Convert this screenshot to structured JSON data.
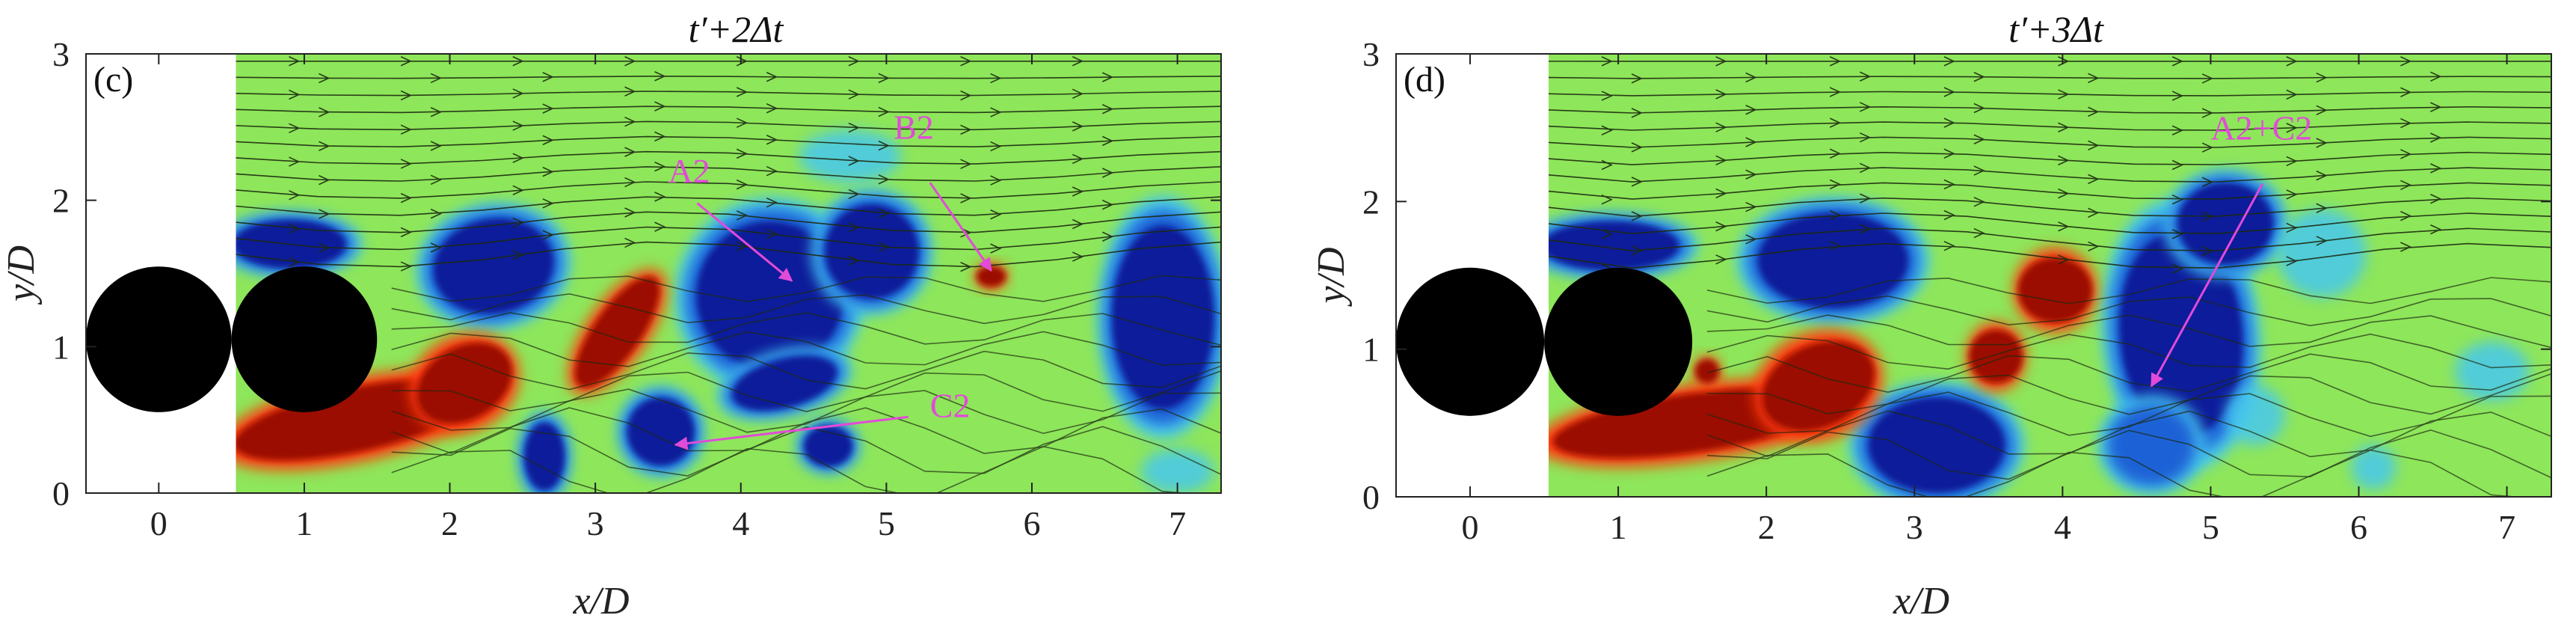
{
  "colors": {
    "background_field": "#8ee65a",
    "positive_vortex": "#9b0b00",
    "positive_edge": "#ff3b0a",
    "negative_vortex": "#0a1f9a",
    "negative_mid": "#1e62d6",
    "negative_edge": "#47c8ee",
    "cylinder": "#000000",
    "streamline": "#1c2a10",
    "annotation": "#e24ad8"
  },
  "chart_data": [
    {
      "type": "heatmap",
      "panel_label": "(c)",
      "title": "t′+2Δt",
      "xlabel": "x/D",
      "ylabel": "y/D",
      "xlim": [
        -0.5,
        7.3
      ],
      "ylim": [
        0,
        3
      ],
      "x_ticks": [
        0,
        1,
        2,
        3,
        4,
        5,
        6,
        7
      ],
      "y_ticks": [
        0,
        1,
        2,
        3
      ],
      "measurement_start_x": 0.53,
      "cylinders": [
        {
          "x": 0,
          "y": 1.05,
          "d": 1
        },
        {
          "x": 1,
          "y": 1.05,
          "d": 1
        }
      ],
      "vortices": [
        {
          "sign": "negative",
          "x": 0.9,
          "y": 1.7,
          "rx": 0.42,
          "ry": 0.18,
          "rot": 0
        },
        {
          "sign": "negative",
          "x": 2.3,
          "y": 1.55,
          "rx": 0.45,
          "ry": 0.35,
          "rot": -10
        },
        {
          "sign": "negative",
          "x": 4.2,
          "y": 1.35,
          "rx": 0.55,
          "ry": 0.55,
          "rot": 20
        },
        {
          "sign": "negative",
          "x": 4.9,
          "y": 1.65,
          "rx": 0.35,
          "ry": 0.35,
          "rot": 0
        },
        {
          "sign": "negative",
          "x": 4.3,
          "y": 0.75,
          "rx": 0.4,
          "ry": 0.18,
          "rot": -15
        },
        {
          "sign": "negative",
          "x": 3.45,
          "y": 0.42,
          "rx": 0.25,
          "ry": 0.25,
          "rot": 0
        },
        {
          "sign": "negative",
          "x": 2.65,
          "y": 0.25,
          "rx": 0.15,
          "ry": 0.25,
          "rot": 0
        },
        {
          "sign": "negative",
          "x": 4.6,
          "y": 0.32,
          "rx": 0.18,
          "ry": 0.15,
          "rot": 0
        },
        {
          "sign": "negative",
          "x": 6.9,
          "y": 1.2,
          "rx": 0.38,
          "ry": 0.68,
          "rot": 0
        },
        {
          "sign": "negative_weak",
          "x": 4.75,
          "y": 2.3,
          "rx": 0.35,
          "ry": 0.18,
          "rot": 0
        },
        {
          "sign": "negative_weak",
          "x": 7.0,
          "y": 0.15,
          "rx": 0.25,
          "ry": 0.15,
          "rot": 0
        },
        {
          "sign": "positive",
          "x": 1.35,
          "y": 0.5,
          "rx": 0.85,
          "ry": 0.22,
          "rot": -12
        },
        {
          "sign": "positive",
          "x": 2.1,
          "y": 0.75,
          "rx": 0.35,
          "ry": 0.25,
          "rot": -30
        },
        {
          "sign": "positive",
          "x": 3.15,
          "y": 1.1,
          "rx": 0.45,
          "ry": 0.16,
          "rot": -55
        },
        {
          "sign": "positive",
          "x": 5.72,
          "y": 1.48,
          "rx": 0.1,
          "ry": 0.07,
          "rot": 0
        }
      ],
      "annotations": [
        {
          "text": "A2",
          "x": 3.5,
          "y": 2.12,
          "arrow_from": [
            3.7,
            1.98
          ],
          "arrow_to": [
            4.35,
            1.45
          ]
        },
        {
          "text": "B2",
          "x": 5.05,
          "y": 2.42,
          "arrow_from": [
            5.3,
            2.12
          ],
          "arrow_to": [
            5.72,
            1.52
          ]
        },
        {
          "text": "C2",
          "x": 5.3,
          "y": 0.52,
          "arrow_from": [
            5.15,
            0.52
          ],
          "arrow_to": [
            3.55,
            0.33
          ]
        }
      ]
    },
    {
      "type": "heatmap",
      "panel_label": "(d)",
      "title": "t′+3Δt",
      "xlabel": "x/D",
      "ylabel": "y/D",
      "xlim": [
        -0.5,
        7.3
      ],
      "ylim": [
        0,
        3
      ],
      "x_ticks": [
        0,
        1,
        2,
        3,
        4,
        5,
        6,
        7
      ],
      "y_ticks": [
        0,
        1,
        2,
        3
      ],
      "measurement_start_x": 0.53,
      "cylinders": [
        {
          "x": 0,
          "y": 1.05,
          "d": 1
        },
        {
          "x": 1,
          "y": 1.05,
          "d": 1
        }
      ],
      "vortices": [
        {
          "sign": "negative",
          "x": 0.95,
          "y": 1.7,
          "rx": 0.5,
          "ry": 0.18,
          "rot": 0
        },
        {
          "sign": "negative",
          "x": 2.45,
          "y": 1.6,
          "rx": 0.55,
          "ry": 0.35,
          "rot": 0
        },
        {
          "sign": "negative",
          "x": 3.15,
          "y": 0.35,
          "rx": 0.5,
          "ry": 0.35,
          "rot": 0
        },
        {
          "sign": "negative",
          "x": 4.8,
          "y": 1.1,
          "rx": 0.45,
          "ry": 0.75,
          "rot": -5
        },
        {
          "sign": "negative",
          "x": 5.1,
          "y": 1.85,
          "rx": 0.35,
          "ry": 0.3,
          "rot": 0
        },
        {
          "sign": "negative_mid",
          "x": 4.6,
          "y": 0.35,
          "rx": 0.3,
          "ry": 0.28,
          "rot": 0
        },
        {
          "sign": "negative_weak",
          "x": 5.75,
          "y": 1.65,
          "rx": 0.3,
          "ry": 0.3,
          "rot": 0
        },
        {
          "sign": "negative_weak",
          "x": 5.3,
          "y": 0.55,
          "rx": 0.2,
          "ry": 0.2,
          "rot": 0
        },
        {
          "sign": "negative_weak",
          "x": 6.9,
          "y": 0.85,
          "rx": 0.25,
          "ry": 0.2,
          "rot": 0
        },
        {
          "sign": "negative_weak",
          "x": 6.1,
          "y": 0.2,
          "rx": 0.15,
          "ry": 0.15,
          "rot": 0
        },
        {
          "sign": "positive",
          "x": 1.5,
          "y": 0.5,
          "rx": 0.95,
          "ry": 0.2,
          "rot": -8
        },
        {
          "sign": "positive",
          "x": 2.35,
          "y": 0.75,
          "rx": 0.4,
          "ry": 0.28,
          "rot": -25
        },
        {
          "sign": "positive",
          "x": 3.95,
          "y": 1.4,
          "rx": 0.25,
          "ry": 0.22,
          "rot": 0
        },
        {
          "sign": "positive",
          "x": 3.55,
          "y": 0.95,
          "rx": 0.18,
          "ry": 0.18,
          "rot": 0
        },
        {
          "sign": "positive",
          "x": 1.6,
          "y": 0.85,
          "rx": 0.08,
          "ry": 0.08,
          "rot": 0
        }
      ],
      "annotations": [
        {
          "text": "A2+C2",
          "x": 5.0,
          "y": 2.42,
          "arrow_from": [
            5.35,
            2.12
          ],
          "arrow_to": [
            4.6,
            0.75
          ]
        }
      ]
    }
  ]
}
